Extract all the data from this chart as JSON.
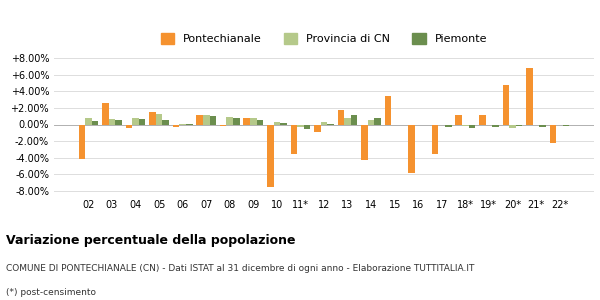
{
  "years": [
    "02",
    "03",
    "04",
    "05",
    "06",
    "07",
    "08",
    "09",
    "10",
    "11*",
    "12",
    "13",
    "14",
    "15",
    "16",
    "17",
    "18*",
    "19*",
    "20*",
    "21*",
    "22*"
  ],
  "pontechianale": [
    -4.2,
    2.6,
    -0.4,
    1.5,
    -0.3,
    1.1,
    -0.2,
    0.8,
    -7.5,
    -3.5,
    -0.9,
    1.7,
    -4.3,
    3.4,
    -5.8,
    -3.5,
    1.2,
    1.2,
    4.8,
    6.8,
    -2.2
  ],
  "provincia_cn": [
    0.8,
    0.7,
    0.8,
    1.3,
    0.1,
    1.1,
    0.9,
    0.8,
    0.3,
    -0.3,
    0.3,
    0.8,
    0.5,
    -0.1,
    -0.1,
    -0.1,
    -0.2,
    -0.1,
    -0.4,
    -0.1,
    -0.1
  ],
  "piemonte": [
    0.4,
    0.5,
    0.7,
    0.6,
    0.1,
    1.0,
    0.8,
    0.5,
    0.2,
    -0.5,
    0.1,
    1.1,
    0.8,
    -0.1,
    -0.1,
    -0.3,
    -0.4,
    -0.3,
    -0.2,
    -0.3,
    -0.2
  ],
  "color_pontechianale": "#f5922f",
  "color_provincia": "#b5c98a",
  "color_piemonte": "#6b8e4e",
  "ylim": [
    -8.5,
    8.5
  ],
  "yticks": [
    -8.0,
    -6.0,
    -4.0,
    -2.0,
    0.0,
    2.0,
    4.0,
    6.0,
    8.0
  ],
  "title": "Variazione percentuale della popolazione",
  "subtitle": "COMUNE DI PONTECHIANALE (CN) - Dati ISTAT al 31 dicembre di ogni anno - Elaborazione TUTTITALIA.IT",
  "footnote": "(*) post-censimento",
  "legend_labels": [
    "Pontechianale",
    "Provincia di CN",
    "Piemonte"
  ],
  "bar_width": 0.28,
  "fig_width": 6.0,
  "fig_height": 3.0,
  "background_color": "#ffffff",
  "grid_color": "#dddddd"
}
